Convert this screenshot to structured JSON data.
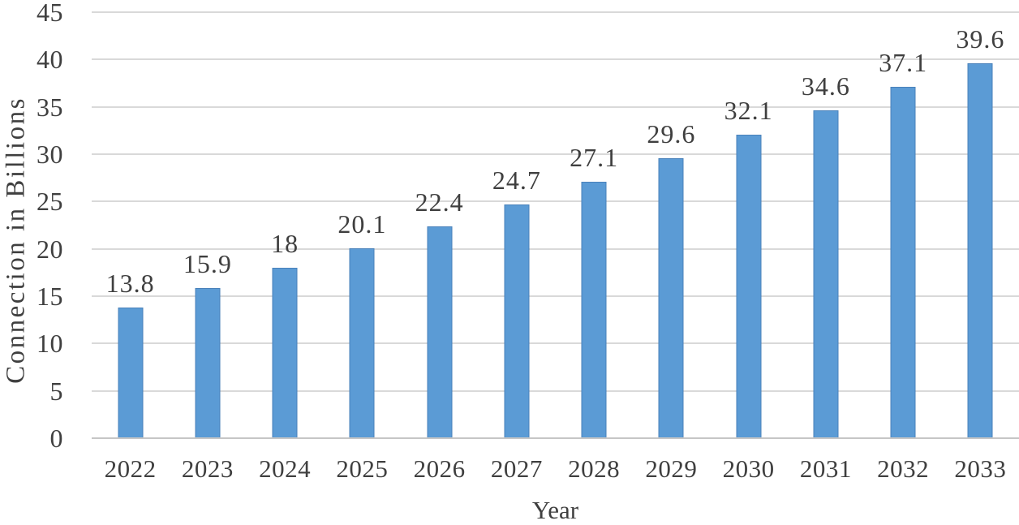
{
  "chart_data": {
    "type": "bar",
    "title": "",
    "xlabel": "Year",
    "ylabel": "Connection in Billions",
    "categories": [
      "2022",
      "2023",
      "2024",
      "2025",
      "2026",
      "2027",
      "2028",
      "2029",
      "2030",
      "2031",
      "2032",
      "2033"
    ],
    "values": [
      13.8,
      15.9,
      18,
      20.1,
      22.4,
      24.7,
      27.1,
      29.6,
      32.1,
      34.6,
      37.1,
      39.6
    ],
    "value_labels": [
      "13.8",
      "15.9",
      "18",
      "20.1",
      "22.4",
      "24.7",
      "27.1",
      "29.6",
      "32.1",
      "34.6",
      "37.1",
      "39.6"
    ],
    "ylim": [
      0,
      45
    ],
    "yticks": [
      0,
      5,
      10,
      15,
      20,
      25,
      30,
      35,
      40,
      45
    ],
    "grid": true,
    "legend": "none",
    "colors": {
      "bar_fill": "#5b9bd5",
      "bar_border": "#4981ba",
      "gridline": "#d9d9d9",
      "axis_line": "#c6c6c6",
      "text": "#3f3f3f",
      "background": "#ffffff"
    }
  }
}
